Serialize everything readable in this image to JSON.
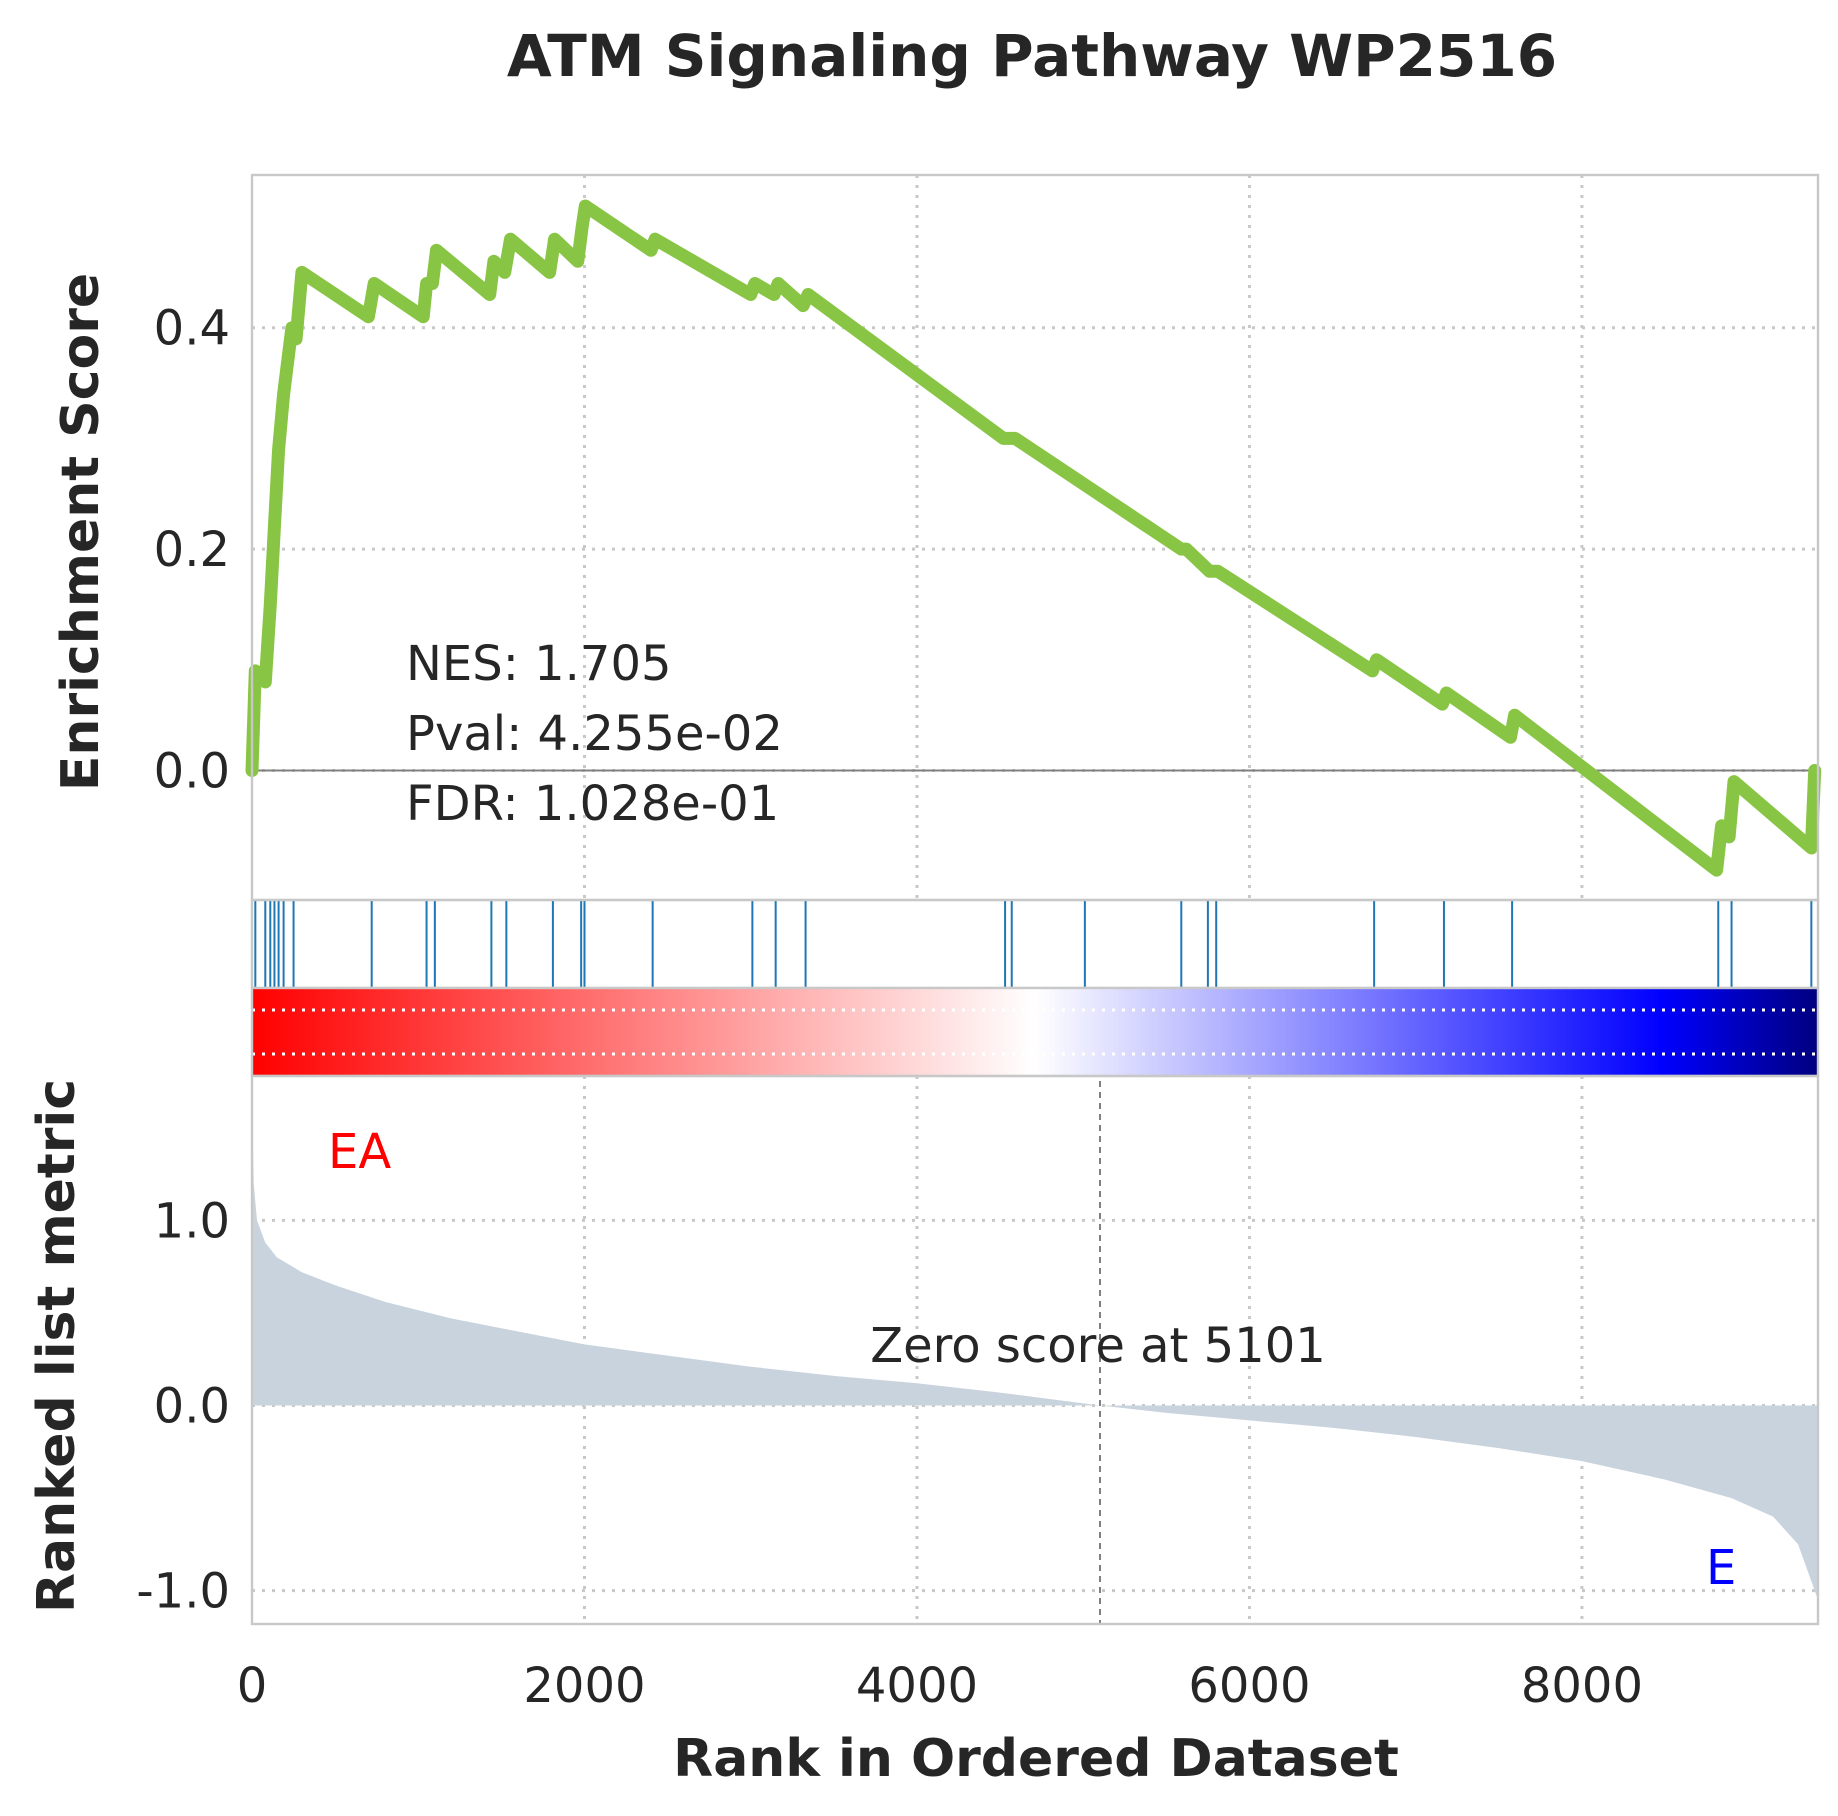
{
  "chart_data": {
    "type": "line",
    "title": "ATM Signaling Pathway WP2516",
    "xlabel": "Rank in Ordered Dataset",
    "xlim": [
      0,
      9420
    ],
    "x_ticks": [
      "0",
      "2000",
      "4000",
      "6000",
      "8000"
    ],
    "x_tick_values": [
      0,
      2000,
      4000,
      6000,
      8000
    ],
    "grid": true,
    "panels": {
      "enrichment": {
        "ylabel": "Enrichment Score",
        "ylim": [
          -0.117,
          0.538
        ],
        "y_ticks": [
          "0.0",
          "0.2",
          "0.4"
        ],
        "y_tick_values": [
          0.0,
          0.2,
          0.4
        ],
        "line_color": "#88c544",
        "zero_line": 0.0,
        "hits": [
          20,
          80,
          110,
          135,
          160,
          190,
          250,
          720,
          1050,
          1100,
          1440,
          1530,
          1810,
          1980,
          2000,
          2410,
          3010,
          3150,
          3330,
          4530,
          4570,
          5010,
          5590,
          5750,
          5800,
          6750,
          7170,
          7580,
          8820,
          8900,
          9380
        ],
        "curve": [
          [
            0,
            0.0
          ],
          [
            20,
            0.09
          ],
          [
            80,
            0.08
          ],
          [
            110,
            0.15
          ],
          [
            135,
            0.22
          ],
          [
            160,
            0.29
          ],
          [
            190,
            0.34
          ],
          [
            240,
            0.4
          ],
          [
            265,
            0.39
          ],
          [
            300,
            0.45
          ],
          [
            700,
            0.41
          ],
          [
            735,
            0.44
          ],
          [
            1030,
            0.41
          ],
          [
            1050,
            0.44
          ],
          [
            1085,
            0.44
          ],
          [
            1110,
            0.47
          ],
          [
            1430,
            0.43
          ],
          [
            1455,
            0.46
          ],
          [
            1520,
            0.45
          ],
          [
            1555,
            0.48
          ],
          [
            1790,
            0.45
          ],
          [
            1820,
            0.48
          ],
          [
            1960,
            0.46
          ],
          [
            1985,
            0.49
          ],
          [
            2005,
            0.51
          ],
          [
            2400,
            0.47
          ],
          [
            2425,
            0.48
          ],
          [
            3000,
            0.43
          ],
          [
            3025,
            0.44
          ],
          [
            3140,
            0.43
          ],
          [
            3165,
            0.44
          ],
          [
            3315,
            0.42
          ],
          [
            3345,
            0.43
          ],
          [
            4520,
            0.3
          ],
          [
            4590,
            0.3
          ],
          [
            5590,
            0.2
          ],
          [
            5620,
            0.2
          ],
          [
            5760,
            0.18
          ],
          [
            5810,
            0.18
          ],
          [
            6740,
            0.09
          ],
          [
            6765,
            0.1
          ],
          [
            7160,
            0.06
          ],
          [
            7185,
            0.07
          ],
          [
            7570,
            0.03
          ],
          [
            7595,
            0.05
          ],
          [
            8810,
            -0.09
          ],
          [
            8840,
            -0.05
          ],
          [
            8885,
            -0.06
          ],
          [
            8915,
            -0.01
          ],
          [
            9380,
            -0.07
          ],
          [
            9400,
            0.0
          ]
        ],
        "annotations": [
          "NES: 1.705",
          "Pval: 4.255e-02",
          "FDR: 1.028e-01"
        ]
      },
      "heatmap": {
        "colormap": "seismic",
        "colors": [
          "#ff0000",
          "#ffffff",
          "#0000ff",
          "#00007f"
        ]
      },
      "ranked_metric": {
        "ylabel": "Ranked list metric",
        "ylim": [
          -1.18,
          1.78
        ],
        "y_ticks": [
          "1.0",
          "0.0",
          "-1.0"
        ],
        "y_tick_values": [
          1.0,
          0.0,
          -1.0
        ],
        "fill_color": "#c9d3dd",
        "curve": [
          [
            0,
            1.65
          ],
          [
            10,
            1.2
          ],
          [
            30,
            1.0
          ],
          [
            80,
            0.88
          ],
          [
            150,
            0.8
          ],
          [
            300,
            0.72
          ],
          [
            500,
            0.65
          ],
          [
            800,
            0.56
          ],
          [
            1200,
            0.47
          ],
          [
            1600,
            0.4
          ],
          [
            2000,
            0.33
          ],
          [
            2500,
            0.27
          ],
          [
            3000,
            0.21
          ],
          [
            3500,
            0.16
          ],
          [
            4000,
            0.12
          ],
          [
            4500,
            0.07
          ],
          [
            5101,
            0.0
          ],
          [
            5500,
            -0.04
          ],
          [
            6000,
            -0.08
          ],
          [
            6500,
            -0.12
          ],
          [
            7000,
            -0.17
          ],
          [
            7500,
            -0.23
          ],
          [
            8000,
            -0.3
          ],
          [
            8500,
            -0.4
          ],
          [
            8900,
            -0.5
          ],
          [
            9150,
            -0.6
          ],
          [
            9300,
            -0.75
          ],
          [
            9380,
            -0.95
          ],
          [
            9420,
            -1.05
          ]
        ],
        "zero_cross": 5101,
        "zero_label": "Zero score at 5101",
        "pos_label": "EA",
        "pos_label_color": "#ff0000",
        "neg_label": "E",
        "neg_label_color": "#0000ff"
      }
    }
  }
}
